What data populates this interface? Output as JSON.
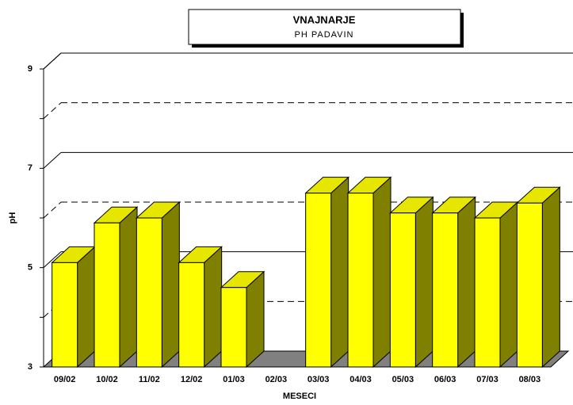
{
  "chart_data": {
    "type": "bar3d",
    "title": "VNAJNARJE",
    "subtitle": "PH PADAVIN",
    "x_label": "MESECI",
    "y_label": "pH",
    "categories": [
      "09/02",
      "10/02",
      "11/02",
      "12/02",
      "01/03",
      "02/03",
      "03/03",
      "04/03",
      "05/03",
      "06/03",
      "07/03",
      "08/03"
    ],
    "values": [
      5.1,
      5.9,
      6.0,
      5.1,
      4.6,
      null,
      6.5,
      6.5,
      6.1,
      6.1,
      6.0,
      6.3
    ],
    "color": "#ffff00",
    "ylim": [
      3,
      9
    ],
    "yticks": [
      3,
      5,
      7,
      9
    ],
    "grid": true
  }
}
